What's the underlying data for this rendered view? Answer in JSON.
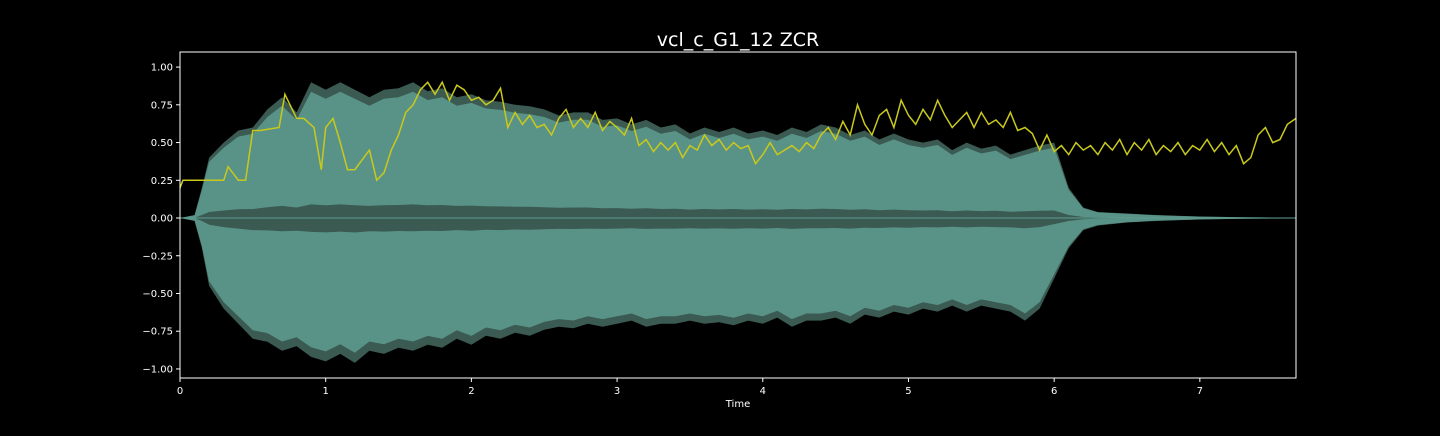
{
  "chart_data": {
    "type": "area",
    "title": "vcl_c_G1_12 ZCR",
    "xlabel": "Time",
    "ylabel": "",
    "xlim": [
      0,
      7.66
    ],
    "ylim": [
      -1.06,
      1.1
    ],
    "x_ticks": [
      0,
      1,
      2,
      3,
      4,
      5,
      6,
      7
    ],
    "x_tick_labels": [
      "0",
      "1",
      "2",
      "3",
      "4",
      "5",
      "6",
      "7"
    ],
    "y_ticks": [
      1.0,
      0.75,
      0.5,
      0.25,
      0.0,
      -0.25,
      -0.5,
      -0.75,
      -1.0
    ],
    "y_tick_labels": [
      "1.00",
      "0.75",
      "0.50",
      "0.25",
      "0.00",
      "−0.25",
      "−0.50",
      "−0.75",
      "−1.00"
    ],
    "grid": false,
    "colors": {
      "background": "#000000",
      "waveform": "#5f9d90",
      "waveform_core": "#3a5a52",
      "zcr_line": "#c9c91c",
      "axes": "#ffffff",
      "text": "#ffffff"
    },
    "series": [
      {
        "kind": "waveform-envelope",
        "x": [
          0,
          0.1,
          0.15,
          0.2,
          0.3,
          0.4,
          0.5,
          0.6,
          0.7,
          0.8,
          0.9,
          1.0,
          1.1,
          1.2,
          1.3,
          1.4,
          1.5,
          1.6,
          1.7,
          1.8,
          1.9,
          2.0,
          2.1,
          2.2,
          2.3,
          2.4,
          2.5,
          2.6,
          2.7,
          2.8,
          2.9,
          3.0,
          3.1,
          3.2,
          3.3,
          3.4,
          3.5,
          3.6,
          3.7,
          3.8,
          3.9,
          4.0,
          4.1,
          4.2,
          4.3,
          4.4,
          4.5,
          4.6,
          4.7,
          4.8,
          4.9,
          5.0,
          5.1,
          5.2,
          5.3,
          5.4,
          5.5,
          5.6,
          5.7,
          5.8,
          5.9,
          6.0,
          6.1,
          6.2,
          6.3,
          6.5,
          6.7,
          7.0,
          7.3,
          7.66
        ],
        "upper": [
          0,
          0.02,
          0.2,
          0.4,
          0.5,
          0.58,
          0.6,
          0.72,
          0.8,
          0.7,
          0.9,
          0.85,
          0.9,
          0.85,
          0.8,
          0.85,
          0.86,
          0.9,
          0.84,
          0.86,
          0.8,
          0.82,
          0.78,
          0.77,
          0.75,
          0.74,
          0.72,
          0.68,
          0.7,
          0.7,
          0.65,
          0.66,
          0.62,
          0.65,
          0.6,
          0.62,
          0.56,
          0.6,
          0.57,
          0.6,
          0.56,
          0.58,
          0.55,
          0.6,
          0.57,
          0.62,
          0.6,
          0.55,
          0.58,
          0.52,
          0.56,
          0.52,
          0.5,
          0.52,
          0.45,
          0.5,
          0.46,
          0.48,
          0.42,
          0.45,
          0.48,
          0.5,
          0.2,
          0.07,
          0.04,
          0.03,
          0.02,
          0.01,
          0.005,
          0.003
        ],
        "lower": [
          0,
          -0.02,
          -0.2,
          -0.45,
          -0.6,
          -0.7,
          -0.8,
          -0.82,
          -0.88,
          -0.85,
          -0.92,
          -0.95,
          -0.9,
          -0.96,
          -0.88,
          -0.9,
          -0.86,
          -0.88,
          -0.84,
          -0.86,
          -0.8,
          -0.84,
          -0.78,
          -0.8,
          -0.76,
          -0.78,
          -0.74,
          -0.72,
          -0.73,
          -0.7,
          -0.72,
          -0.7,
          -0.68,
          -0.72,
          -0.7,
          -0.7,
          -0.68,
          -0.7,
          -0.69,
          -0.71,
          -0.68,
          -0.7,
          -0.66,
          -0.72,
          -0.68,
          -0.68,
          -0.66,
          -0.7,
          -0.64,
          -0.66,
          -0.62,
          -0.64,
          -0.6,
          -0.62,
          -0.58,
          -0.62,
          -0.58,
          -0.6,
          -0.62,
          -0.68,
          -0.6,
          -0.4,
          -0.2,
          -0.08,
          -0.05,
          -0.03,
          -0.02,
          -0.01,
          -0.005,
          -0.003
        ]
      },
      {
        "kind": "zcr-line",
        "x": [
          0,
          0.02,
          0.3,
          0.33,
          0.4,
          0.45,
          0.5,
          0.55,
          0.68,
          0.72,
          0.8,
          0.85,
          0.92,
          0.97,
          1.0,
          1.05,
          1.1,
          1.15,
          1.2,
          1.3,
          1.35,
          1.4,
          1.45,
          1.5,
          1.55,
          1.6,
          1.65,
          1.7,
          1.75,
          1.8,
          1.85,
          1.9,
          1.95,
          2.0,
          2.05,
          2.1,
          2.15,
          2.2,
          2.25,
          2.3,
          2.35,
          2.4,
          2.45,
          2.5,
          2.55,
          2.6,
          2.65,
          2.7,
          2.75,
          2.8,
          2.85,
          2.9,
          2.95,
          3.0,
          3.05,
          3.1,
          3.15,
          3.2,
          3.25,
          3.3,
          3.35,
          3.4,
          3.45,
          3.5,
          3.55,
          3.6,
          3.65,
          3.7,
          3.75,
          3.8,
          3.85,
          3.9,
          3.95,
          4.0,
          4.05,
          4.1,
          4.15,
          4.2,
          4.25,
          4.3,
          4.35,
          4.4,
          4.45,
          4.5,
          4.55,
          4.6,
          4.65,
          4.7,
          4.75,
          4.8,
          4.85,
          4.9,
          4.95,
          5.0,
          5.05,
          5.1,
          5.15,
          5.2,
          5.25,
          5.3,
          5.35,
          5.4,
          5.45,
          5.5,
          5.55,
          5.6,
          5.65,
          5.7,
          5.75,
          5.8,
          5.85,
          5.9,
          5.95,
          6.0,
          6.05,
          6.1,
          6.15,
          6.2,
          6.25,
          6.3,
          6.35,
          6.4,
          6.45,
          6.5,
          6.55,
          6.6,
          6.65,
          6.7,
          6.75,
          6.8,
          6.85,
          6.9,
          6.95,
          7.0,
          7.05,
          7.1,
          7.15,
          7.2,
          7.25,
          7.3,
          7.35,
          7.4,
          7.45,
          7.5,
          7.55,
          7.6,
          7.66
        ],
        "values": [
          0.2,
          0.25,
          0.25,
          0.34,
          0.25,
          0.25,
          0.58,
          0.58,
          0.6,
          0.82,
          0.66,
          0.66,
          0.6,
          0.32,
          0.6,
          0.66,
          0.5,
          0.32,
          0.32,
          0.45,
          0.25,
          0.3,
          0.45,
          0.55,
          0.7,
          0.75,
          0.85,
          0.9,
          0.82,
          0.9,
          0.78,
          0.88,
          0.85,
          0.78,
          0.8,
          0.75,
          0.78,
          0.86,
          0.6,
          0.7,
          0.62,
          0.68,
          0.6,
          0.62,
          0.55,
          0.66,
          0.72,
          0.6,
          0.66,
          0.6,
          0.7,
          0.58,
          0.64,
          0.6,
          0.55,
          0.66,
          0.48,
          0.52,
          0.44,
          0.5,
          0.45,
          0.5,
          0.4,
          0.48,
          0.45,
          0.55,
          0.48,
          0.52,
          0.45,
          0.5,
          0.46,
          0.48,
          0.36,
          0.42,
          0.5,
          0.42,
          0.45,
          0.48,
          0.44,
          0.5,
          0.46,
          0.55,
          0.6,
          0.52,
          0.64,
          0.55,
          0.75,
          0.62,
          0.55,
          0.68,
          0.72,
          0.6,
          0.78,
          0.68,
          0.62,
          0.72,
          0.65,
          0.78,
          0.68,
          0.6,
          0.65,
          0.7,
          0.6,
          0.7,
          0.62,
          0.65,
          0.6,
          0.7,
          0.58,
          0.6,
          0.56,
          0.45,
          0.55,
          0.44,
          0.48,
          0.42,
          0.5,
          0.45,
          0.48,
          0.42,
          0.5,
          0.45,
          0.52,
          0.42,
          0.5,
          0.45,
          0.52,
          0.42,
          0.48,
          0.44,
          0.5,
          0.42,
          0.48,
          0.45,
          0.52,
          0.44,
          0.5,
          0.42,
          0.48,
          0.36,
          0.4,
          0.55,
          0.6,
          0.5,
          0.52,
          0.62,
          0.66
        ]
      }
    ]
  }
}
